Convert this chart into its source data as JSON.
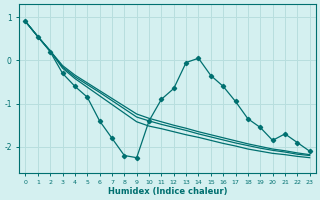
{
  "xlabel": "Humidex (Indice chaleur)",
  "ylabel": "",
  "background_color": "#d4f0f0",
  "line_color": "#007070",
  "grid_color": "#b8dede",
  "xlim": [
    -0.5,
    23.5
  ],
  "ylim": [
    -2.6,
    1.3
  ],
  "xticks": [
    0,
    1,
    2,
    3,
    4,
    5,
    6,
    7,
    8,
    9,
    10,
    11,
    12,
    13,
    14,
    15,
    16,
    17,
    18,
    19,
    20,
    21,
    22,
    23
  ],
  "yticks": [
    1,
    0,
    -1,
    -2
  ],
  "x": [
    0,
    1,
    2,
    3,
    4,
    5,
    6,
    7,
    8,
    9,
    10,
    11,
    12,
    13,
    14,
    15,
    16,
    17,
    18,
    19,
    20,
    21,
    22,
    23
  ],
  "y_wavy": [
    0.9,
    0.55,
    0.2,
    -0.3,
    -0.6,
    -0.85,
    -1.4,
    -1.8,
    -2.2,
    -2.25,
    -1.4,
    -0.9,
    -0.65,
    -0.05,
    0.05,
    -0.35,
    -0.6,
    -0.95,
    -1.35,
    -1.55,
    -1.85,
    -1.7,
    -1.9,
    -2.1
  ],
  "y_line1": [
    0.9,
    0.55,
    0.22,
    -0.18,
    -0.42,
    -0.62,
    -0.82,
    -1.02,
    -1.22,
    -1.42,
    -1.52,
    -1.58,
    -1.65,
    -1.72,
    -1.78,
    -1.85,
    -1.92,
    -1.98,
    -2.05,
    -2.1,
    -2.15,
    -2.18,
    -2.22,
    -2.25
  ],
  "y_line2": [
    0.9,
    0.55,
    0.22,
    -0.15,
    -0.38,
    -0.56,
    -0.74,
    -0.93,
    -1.12,
    -1.31,
    -1.4,
    -1.48,
    -1.55,
    -1.62,
    -1.7,
    -1.77,
    -1.84,
    -1.91,
    -1.97,
    -2.03,
    -2.08,
    -2.12,
    -2.17,
    -2.2
  ],
  "y_line3": [
    0.9,
    0.55,
    0.22,
    -0.12,
    -0.34,
    -0.52,
    -0.7,
    -0.88,
    -1.06,
    -1.24,
    -1.34,
    -1.42,
    -1.5,
    -1.57,
    -1.65,
    -1.72,
    -1.79,
    -1.86,
    -1.93,
    -1.99,
    -2.05,
    -2.09,
    -2.14,
    -2.18
  ]
}
